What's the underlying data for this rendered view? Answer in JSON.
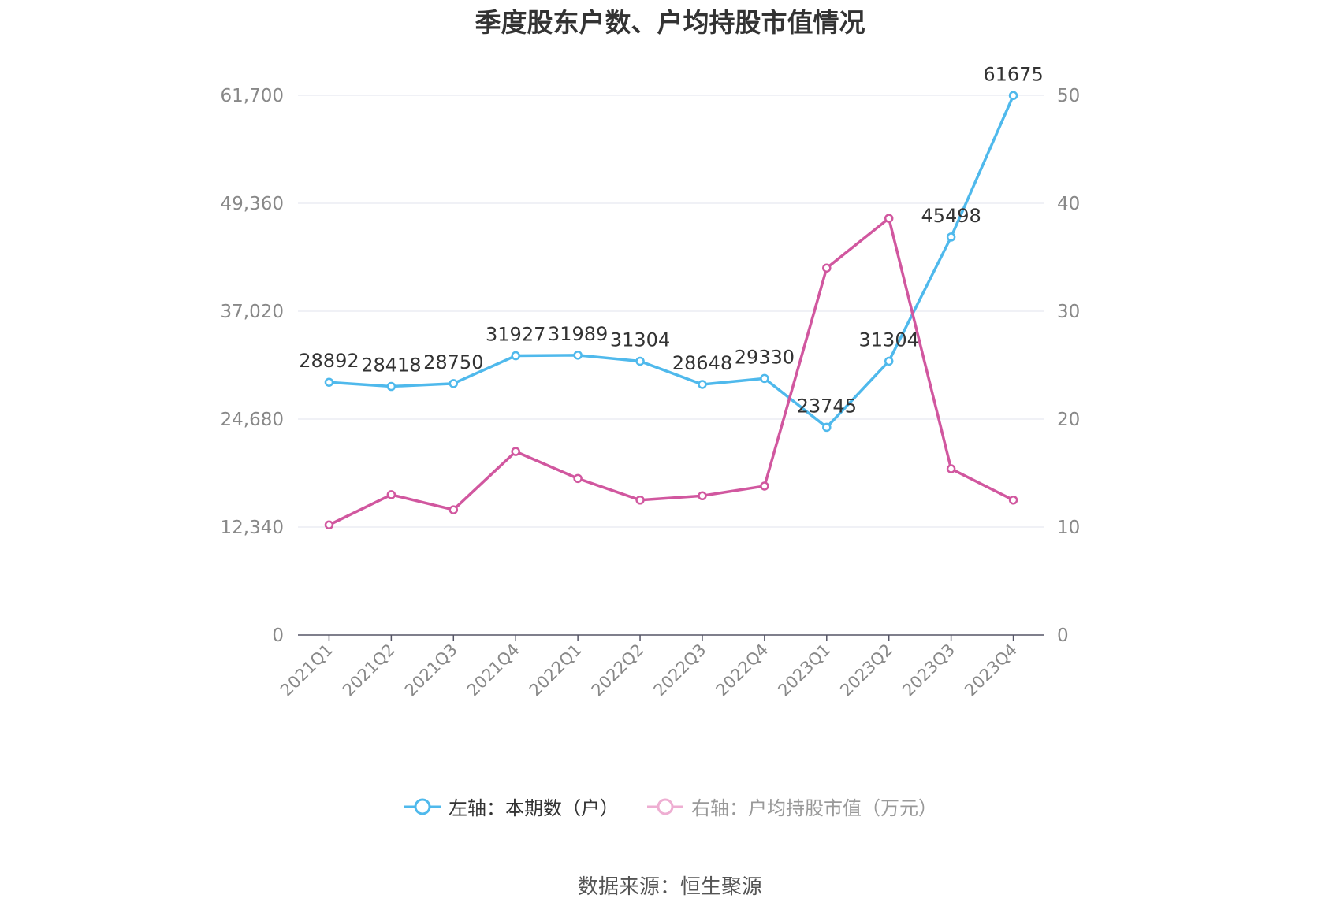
{
  "chart_data": {
    "type": "line",
    "title": "季度股东户数、户均持股市值情况",
    "categories": [
      "2021Q1",
      "2021Q2",
      "2021Q3",
      "2021Q4",
      "2022Q1",
      "2022Q2",
      "2022Q3",
      "2022Q4",
      "2023Q1",
      "2023Q2",
      "2023Q3",
      "2023Q4"
    ],
    "left_axis": {
      "ticks": [
        "0",
        "12,340",
        "24,680",
        "37,020",
        "49,360",
        "61,700"
      ],
      "ylim": [
        0,
        61700
      ]
    },
    "right_axis": {
      "ticks": [
        "0",
        "10",
        "20",
        "30",
        "40",
        "50"
      ],
      "ylim": [
        0,
        50
      ]
    },
    "series": [
      {
        "name": "左轴：本期数（户）",
        "axis": "left",
        "color": "#4fb9ec",
        "values": [
          28892,
          28418,
          28750,
          31927,
          31989,
          31304,
          28648,
          29330,
          23745,
          31304,
          45498,
          61675
        ],
        "labels": [
          "28892",
          "28418",
          "28750",
          "31927",
          "31989",
          "31304",
          "28648",
          "29330",
          "23745",
          "31304",
          "45498",
          "61675"
        ]
      },
      {
        "name": "右轴：户均持股市值（万元）",
        "axis": "right",
        "color": "#d1579f",
        "values": [
          10.2,
          13.0,
          11.6,
          17.0,
          14.5,
          12.5,
          12.9,
          13.8,
          34.0,
          38.6,
          15.4,
          12.5
        ]
      }
    ],
    "grid": true,
    "legend_position": "bottom"
  },
  "legend": {
    "left_label": "左轴：本期数（户）",
    "right_label": "右轴：户均持股市值（万元）"
  },
  "source": "数据来源：恒生聚源"
}
